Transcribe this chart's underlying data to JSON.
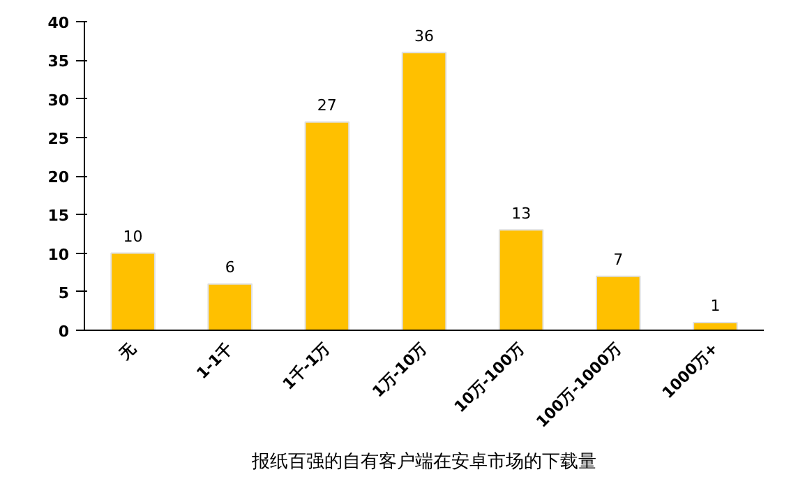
{
  "chart_data": {
    "type": "bar",
    "title": "报纸百强的自有客户端在安卓市场的下载量",
    "categories": [
      "无",
      "1-1千",
      "1千-1万",
      "1万-10万",
      "10万-100万",
      "100万-1000万",
      "1000万+"
    ],
    "values": [
      10,
      6,
      27,
      36,
      13,
      7,
      1
    ],
    "color": "#ffc000",
    "ylim": [
      0,
      40
    ],
    "yticks": [
      0,
      5,
      10,
      15,
      20,
      25,
      30,
      35,
      40
    ],
    "grid": false,
    "data_labels": true
  }
}
